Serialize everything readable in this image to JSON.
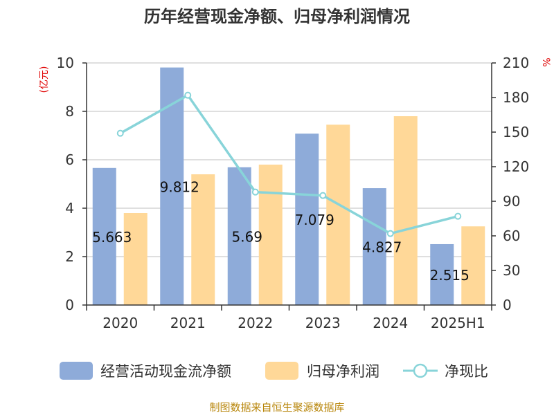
{
  "chart_data": {
    "type": "bar",
    "title": "历年经营现金净额、归母净利润情况",
    "categories": [
      "2020",
      "2021",
      "2022",
      "2023",
      "2024",
      "2025H1"
    ],
    "y_left": {
      "unit_label": "(亿元)",
      "ylim": [
        0,
        10
      ],
      "ticks": [
        "0",
        "2",
        "4",
        "6",
        "8",
        "10"
      ]
    },
    "y_right": {
      "unit_label": "%",
      "ylim": [
        0,
        210
      ],
      "ticks": [
        "0",
        "30",
        "60",
        "90",
        "120",
        "150",
        "180",
        "210"
      ]
    },
    "series": [
      {
        "name": "经营活动现金流净额",
        "type": "bar",
        "axis": "left",
        "color": "#8eabd9",
        "values": [
          5.663,
          9.812,
          5.69,
          7.079,
          4.827,
          2.515
        ],
        "labels": [
          "5.663",
          "9.812",
          "5.69",
          "7.079",
          "4.827",
          "2.515"
        ]
      },
      {
        "name": "归母净利润",
        "type": "bar",
        "axis": "left",
        "color": "#ffd898",
        "values": [
          3.8,
          5.4,
          5.8,
          7.45,
          7.8,
          3.25
        ]
      },
      {
        "name": "净现比",
        "type": "line",
        "axis": "right",
        "color": "#88d4d9",
        "values": [
          149,
          182,
          98,
          95,
          62,
          77
        ]
      }
    ],
    "grid": true,
    "legend_position": "bottom"
  },
  "source": "制图数据来自恒生聚源数据库"
}
